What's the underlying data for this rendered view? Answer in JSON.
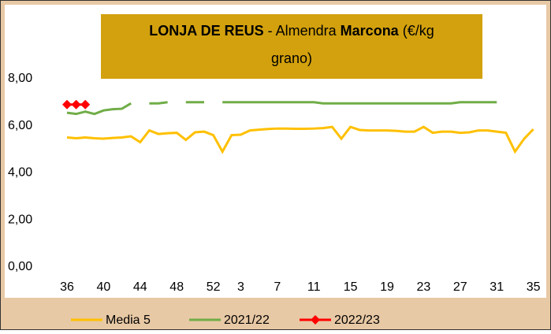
{
  "chart_data": {
    "type": "line",
    "title_parts": [
      {
        "text": "LONJA DE REUS",
        "bold": true
      },
      {
        "text": " - Almendra ",
        "bold": false
      },
      {
        "text": "Marcona",
        "bold": true
      },
      {
        "text": " (€/kg",
        "bold": false
      },
      {
        "text": "grano)",
        "bold": false,
        "newline": true
      }
    ],
    "categories": [
      36,
      null,
      null,
      null,
      40,
      null,
      null,
      null,
      44,
      null,
      null,
      null,
      48,
      null,
      null,
      null,
      52,
      null,
      null,
      3,
      null,
      null,
      null,
      7,
      null,
      null,
      null,
      11,
      null,
      null,
      null,
      15,
      null,
      null,
      null,
      19,
      null,
      null,
      null,
      23,
      null,
      null,
      null,
      27,
      null,
      null,
      null,
      31,
      null,
      null,
      null,
      35
    ],
    "series": [
      {
        "name": "Media 5",
        "color": "#ffc000",
        "marker": false,
        "values": [
          5.5,
          5.47,
          5.5,
          5.47,
          5.45,
          5.48,
          5.5,
          5.55,
          5.3,
          5.8,
          5.65,
          5.68,
          5.7,
          5.4,
          5.72,
          5.75,
          5.6,
          4.9,
          5.6,
          5.62,
          5.8,
          5.83,
          5.86,
          5.88,
          5.88,
          5.87,
          5.87,
          5.88,
          5.9,
          5.95,
          5.45,
          5.95,
          5.82,
          5.8,
          5.8,
          5.8,
          5.78,
          5.75,
          5.75,
          5.95,
          5.7,
          5.75,
          5.75,
          5.7,
          5.72,
          5.8,
          5.8,
          5.75,
          5.7,
          4.9,
          5.45,
          5.85
        ]
      },
      {
        "name": "2021/22",
        "color": "#70ad47",
        "marker": false,
        "values": [
          6.55,
          6.5,
          6.6,
          6.5,
          6.65,
          6.7,
          6.72,
          6.95,
          null,
          6.95,
          6.95,
          7.0,
          null,
          7.0,
          7.0,
          7.0,
          null,
          7.0,
          7.0,
          7.0,
          7.0,
          7.0,
          7.0,
          7.0,
          7.0,
          7.0,
          7.0,
          7.0,
          6.95,
          6.95,
          6.95,
          6.95,
          6.95,
          6.95,
          6.95,
          6.95,
          6.95,
          6.95,
          6.95,
          6.95,
          6.95,
          6.95,
          6.95,
          7.0,
          7.0,
          7.0,
          7.0,
          7.0,
          null,
          null,
          null,
          null
        ]
      },
      {
        "name": "2022/23",
        "color": "#ff0000",
        "marker": true,
        "values": [
          6.9,
          6.9,
          6.9,
          null,
          null,
          null,
          null,
          null,
          null,
          null,
          null,
          null,
          null,
          null,
          null,
          null,
          null,
          null,
          null,
          null,
          null,
          null,
          null,
          null,
          null,
          null,
          null,
          null,
          null,
          null,
          null,
          null,
          null,
          null,
          null,
          null,
          null,
          null,
          null,
          null,
          null,
          null,
          null,
          null,
          null,
          null,
          null,
          null,
          null,
          null,
          null,
          null
        ]
      }
    ],
    "ylim": [
      0,
      10
    ],
    "yticks": [
      {
        "value": 0,
        "label": "0,00"
      },
      {
        "value": 2,
        "label": "2,00"
      },
      {
        "value": 4,
        "label": "4,00"
      },
      {
        "value": 6,
        "label": "6,00"
      },
      {
        "value": 8,
        "label": "8,00"
      }
    ],
    "legend": "bottom"
  }
}
